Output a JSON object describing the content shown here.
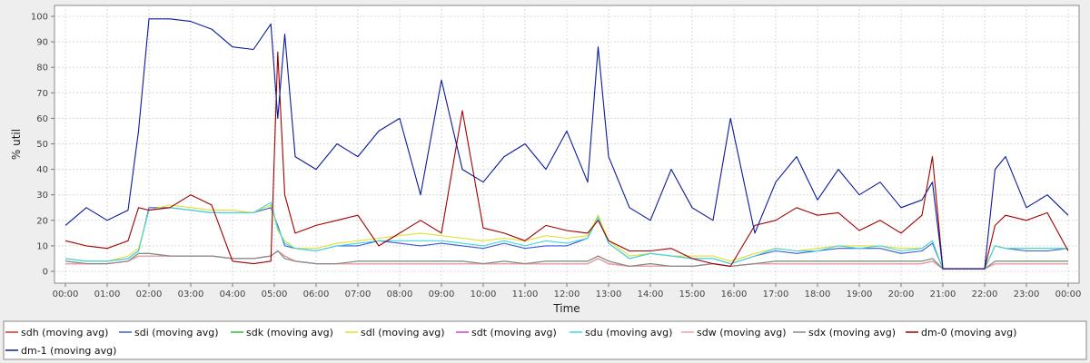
{
  "chart_data": {
    "type": "line",
    "title": "",
    "xlabel": "Time",
    "ylabel": "% util",
    "ylim": [
      0,
      100
    ],
    "xlim": [
      "00:00",
      "24:00"
    ],
    "grid": true,
    "legend_position": "bottom",
    "x_ticks": [
      "00:00",
      "01:00",
      "02:00",
      "03:00",
      "04:00",
      "05:00",
      "06:00",
      "07:00",
      "08:00",
      "09:00",
      "10:00",
      "11:00",
      "12:00",
      "13:00",
      "14:00",
      "15:00",
      "16:00",
      "17:00",
      "18:00",
      "19:00",
      "20:00",
      "21:00",
      "22:00",
      "23:00",
      "00:00"
    ],
    "y_ticks": [
      0,
      10,
      20,
      30,
      40,
      50,
      60,
      70,
      80,
      90,
      100
    ],
    "x": [
      "00:00",
      "00:30",
      "01:00",
      "01:30",
      "01:45",
      "02:00",
      "02:30",
      "03:00",
      "03:30",
      "04:00",
      "04:30",
      "04:55",
      "05:05",
      "05:15",
      "05:30",
      "06:00",
      "06:30",
      "07:00",
      "07:30",
      "08:00",
      "08:30",
      "09:00",
      "09:30",
      "10:00",
      "10:30",
      "11:00",
      "11:30",
      "12:00",
      "12:30",
      "12:45",
      "13:00",
      "13:30",
      "14:00",
      "14:30",
      "15:00",
      "15:30",
      "15:55",
      "16:30",
      "17:00",
      "17:30",
      "18:00",
      "18:30",
      "19:00",
      "19:30",
      "20:00",
      "20:30",
      "20:45",
      "21:00",
      "21:30",
      "22:00",
      "22:15",
      "22:30",
      "23:00",
      "23:30",
      "24:00"
    ],
    "series": [
      {
        "name": "sdh (moving avg)",
        "color": "#e03030",
        "values": [
          3,
          3,
          3,
          4,
          6,
          6,
          6,
          6,
          6,
          5,
          5,
          6,
          8,
          6,
          4,
          3,
          3,
          3,
          3,
          3,
          3,
          3,
          3,
          3,
          3,
          3,
          3,
          3,
          3,
          5,
          3,
          2,
          2,
          2,
          2,
          3,
          2,
          3,
          3,
          3,
          3,
          3,
          3,
          3,
          3,
          3,
          4,
          1,
          1,
          1,
          3,
          3,
          3,
          3,
          3
        ]
      },
      {
        "name": "sdi (moving avg)",
        "color": "#3a5ad8",
        "values": [
          5,
          4,
          4,
          5,
          8,
          25,
          25,
          24,
          23,
          23,
          23,
          25,
          18,
          10,
          9,
          8,
          10,
          10,
          12,
          11,
          10,
          11,
          10,
          9,
          11,
          9,
          10,
          10,
          13,
          22,
          11,
          5,
          7,
          6,
          5,
          5,
          3,
          6,
          8,
          7,
          8,
          9,
          9,
          9,
          7,
          8,
          11,
          1,
          1,
          1,
          10,
          9,
          8,
          8,
          9
        ]
      },
      {
        "name": "sdk (moving avg)",
        "color": "#30c030",
        "values": [
          4,
          3,
          3,
          4,
          7,
          7,
          6,
          6,
          6,
          5,
          5,
          6,
          8,
          5,
          4,
          3,
          3,
          4,
          4,
          4,
          4,
          4,
          4,
          3,
          4,
          3,
          4,
          4,
          4,
          6,
          4,
          2,
          3,
          2,
          2,
          3,
          2,
          3,
          4,
          4,
          4,
          4,
          4,
          4,
          4,
          4,
          5,
          1,
          1,
          1,
          4,
          4,
          4,
          4,
          4
        ]
      },
      {
        "name": "sdl (moving avg)",
        "color": "#e0e030",
        "values": [
          5,
          4,
          4,
          6,
          9,
          24,
          26,
          25,
          24,
          24,
          23,
          26,
          16,
          12,
          9,
          9,
          11,
          12,
          13,
          14,
          15,
          14,
          13,
          12,
          13,
          12,
          14,
          13,
          14,
          22,
          12,
          6,
          7,
          6,
          6,
          6,
          4,
          7,
          9,
          8,
          9,
          10,
          10,
          10,
          9,
          9,
          12,
          1,
          1,
          1,
          10,
          9,
          9,
          9,
          9
        ]
      },
      {
        "name": "sdt (moving avg)",
        "color": "#d040d0",
        "values": [
          3,
          3,
          3,
          4,
          6,
          6,
          6,
          6,
          6,
          5,
          5,
          6,
          8,
          6,
          4,
          3,
          3,
          3,
          3,
          3,
          3,
          3,
          3,
          3,
          3,
          3,
          3,
          3,
          3,
          5,
          3,
          2,
          2,
          2,
          2,
          3,
          2,
          3,
          3,
          3,
          3,
          3,
          3,
          3,
          3,
          3,
          4,
          1,
          1,
          1,
          3,
          3,
          3,
          3,
          3
        ]
      },
      {
        "name": "sdu (moving avg)",
        "color": "#40d8e0",
        "values": [
          5,
          4,
          4,
          5,
          8,
          24,
          25,
          24,
          23,
          23,
          23,
          27,
          17,
          11,
          9,
          8,
          10,
          11,
          12,
          12,
          12,
          12,
          11,
          10,
          12,
          10,
          12,
          11,
          13,
          21,
          11,
          5,
          7,
          6,
          5,
          5,
          3,
          6,
          9,
          8,
          8,
          10,
          9,
          10,
          8,
          9,
          12,
          1,
          1,
          1,
          10,
          9,
          9,
          9,
          9
        ]
      },
      {
        "name": "sdw (moving avg)",
        "color": "#f0a0a0",
        "values": [
          3,
          3,
          3,
          4,
          6,
          6,
          6,
          6,
          6,
          5,
          5,
          6,
          8,
          6,
          4,
          3,
          3,
          3,
          3,
          3,
          3,
          3,
          3,
          3,
          3,
          3,
          3,
          3,
          3,
          5,
          3,
          2,
          2,
          2,
          2,
          3,
          2,
          3,
          3,
          3,
          3,
          3,
          3,
          3,
          3,
          3,
          4,
          1,
          1,
          1,
          3,
          3,
          3,
          3,
          3
        ]
      },
      {
        "name": "sdx (moving avg)",
        "color": "#888888",
        "values": [
          4,
          3,
          3,
          4,
          7,
          7,
          6,
          6,
          6,
          5,
          5,
          6,
          8,
          5,
          4,
          3,
          3,
          4,
          4,
          4,
          4,
          4,
          4,
          3,
          4,
          3,
          4,
          4,
          4,
          6,
          4,
          2,
          3,
          2,
          2,
          3,
          2,
          3,
          4,
          4,
          4,
          4,
          4,
          4,
          4,
          4,
          5,
          1,
          1,
          1,
          4,
          4,
          4,
          4,
          4
        ]
      },
      {
        "name": "dm-0 (moving avg)",
        "color": "#a00000",
        "values": [
          12,
          10,
          9,
          12,
          25,
          24,
          25,
          30,
          26,
          4,
          3,
          4,
          86,
          30,
          15,
          18,
          20,
          22,
          10,
          15,
          20,
          15,
          63,
          17,
          15,
          12,
          18,
          16,
          15,
          20,
          12,
          8,
          8,
          9,
          5,
          3,
          2,
          18,
          20,
          25,
          22,
          23,
          16,
          20,
          15,
          22,
          45,
          1,
          1,
          1,
          18,
          22,
          20,
          23,
          8
        ]
      },
      {
        "name": "dm-1 (moving avg)",
        "color": "#0a1a9a",
        "values": [
          18,
          25,
          20,
          24,
          55,
          99,
          99,
          98,
          95,
          88,
          87,
          97,
          60,
          93,
          45,
          40,
          50,
          45,
          55,
          60,
          30,
          75,
          40,
          35,
          45,
          50,
          40,
          55,
          35,
          88,
          45,
          25,
          20,
          40,
          25,
          20,
          60,
          15,
          35,
          45,
          28,
          40,
          30,
          35,
          25,
          28,
          35,
          1,
          1,
          1,
          40,
          45,
          25,
          30,
          22
        ]
      }
    ]
  }
}
